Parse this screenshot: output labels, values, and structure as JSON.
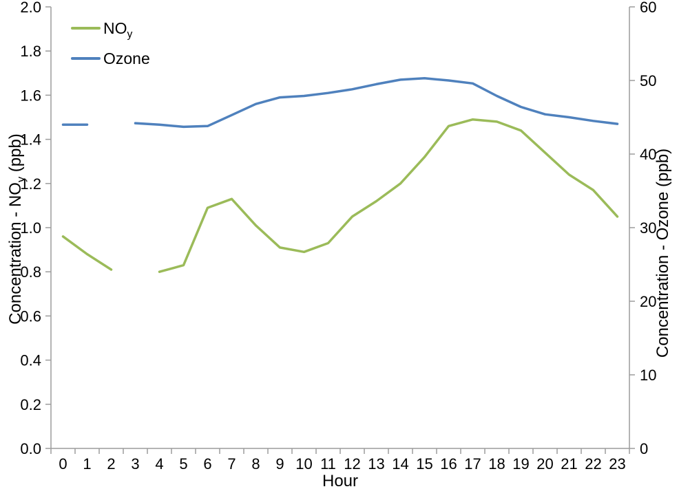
{
  "chart_data": {
    "type": "line",
    "title": "",
    "xlabel": "Hour",
    "categories": [
      "0",
      "1",
      "2",
      "3",
      "4",
      "5",
      "6",
      "7",
      "8",
      "9",
      "10",
      "11",
      "12",
      "13",
      "14",
      "15",
      "16",
      "17",
      "18",
      "19",
      "20",
      "21",
      "22",
      "23"
    ],
    "series": [
      {
        "name": "NOy",
        "legend_main": "NO",
        "legend_sub": "y",
        "axis": "left",
        "color": "#9BBB59",
        "values": [
          0.96,
          0.88,
          0.81,
          null,
          0.8,
          0.83,
          1.09,
          1.13,
          1.01,
          0.91,
          0.89,
          0.93,
          1.05,
          1.12,
          1.2,
          1.32,
          1.46,
          1.49,
          1.48,
          1.44,
          1.34,
          1.24,
          1.17,
          1.05
        ]
      },
      {
        "name": "Ozone",
        "legend_main": "Ozone",
        "legend_sub": "",
        "axis": "right",
        "color": "#4F81BD",
        "values": [
          44.0,
          44.0,
          null,
          44.2,
          44.0,
          43.7,
          43.8,
          45.3,
          46.8,
          47.7,
          47.9,
          48.3,
          48.8,
          49.5,
          50.1,
          50.3,
          50.0,
          49.6,
          47.9,
          46.4,
          45.4,
          45.0,
          44.5,
          44.1
        ]
      }
    ],
    "axis_left": {
      "title_prefix": "Concentration - NO",
      "title_sub": "y",
      "title_suffix": " (ppb)",
      "min": 0.0,
      "max": 2.0,
      "tick_labels": [
        "0.0",
        "0.2",
        "0.4",
        "0.6",
        "0.8",
        "1.0",
        "1.2",
        "1.4",
        "1.6",
        "1.8",
        "2.0"
      ]
    },
    "axis_right": {
      "title": "Concentration - Ozone (ppb)",
      "min": 0,
      "max": 60,
      "tick_labels": [
        "0",
        "10",
        "20",
        "30",
        "40",
        "50",
        "60"
      ]
    },
    "grid": false,
    "legend_position": "top-left",
    "axis_color": "#9C9C9C",
    "text_color": "#000000",
    "background": "#FFFFFF"
  }
}
